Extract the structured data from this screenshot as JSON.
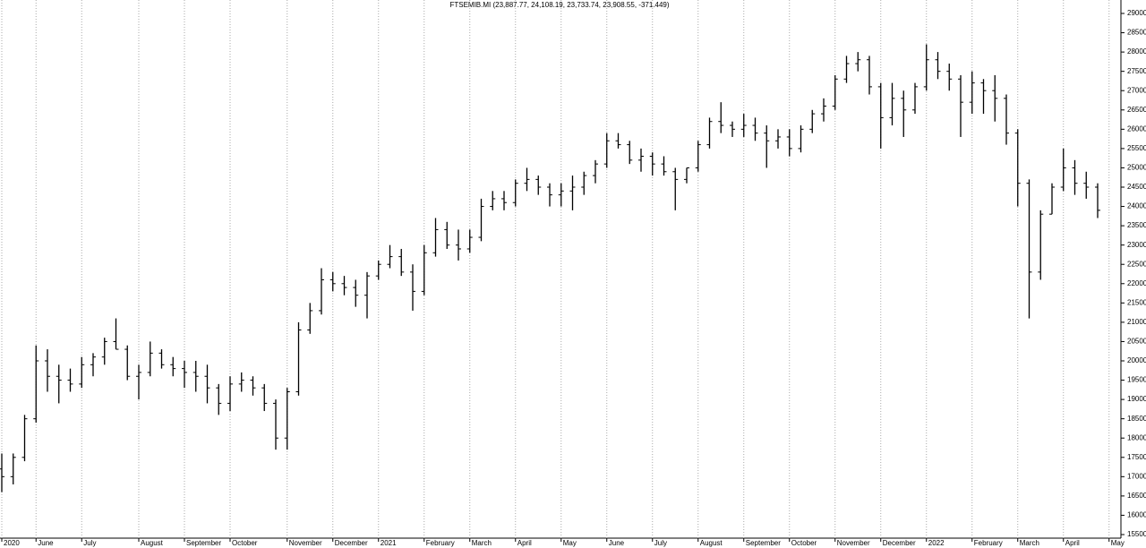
{
  "chart_data": {
    "type": "ohlc",
    "title": "FTSEMIB.MI (23,887.77, 24,108.19, 23,733.74, 23,908.55, -371.449)",
    "color": "#000000",
    "grid": true,
    "categories": [
      "2020",
      null,
      null,
      "June",
      null,
      null,
      null,
      "July",
      null,
      null,
      null,
      null,
      "August",
      null,
      null,
      null,
      "September",
      null,
      null,
      null,
      "October",
      null,
      null,
      null,
      null,
      "November",
      null,
      null,
      null,
      "December",
      null,
      null,
      null,
      "2021",
      null,
      null,
      null,
      "February",
      null,
      null,
      null,
      "March",
      null,
      null,
      null,
      "April",
      null,
      null,
      null,
      "May",
      null,
      null,
      null,
      "June",
      null,
      null,
      null,
      "July",
      null,
      null,
      null,
      "August",
      null,
      null,
      null,
      "September",
      null,
      null,
      null,
      "October",
      null,
      null,
      null,
      "November",
      null,
      null,
      null,
      "December",
      null,
      null,
      null,
      "2022",
      null,
      null,
      null,
      "February",
      null,
      null,
      null,
      "March",
      null,
      null,
      null,
      "April",
      null,
      null,
      null,
      "May"
    ],
    "open": [
      17200,
      17000,
      17500,
      18500,
      20000,
      19600,
      19500,
      19400,
      19900,
      20100,
      20500,
      20300,
      19600,
      19700,
      20200,
      19900,
      19800,
      19700,
      19600,
      19300,
      18900,
      19400,
      19500,
      19300,
      18900,
      18000,
      19200,
      20800,
      21300,
      22100,
      22000,
      21900,
      21700,
      22200,
      22500,
      22700,
      22300,
      21800,
      22800,
      23400,
      23000,
      22900,
      23200,
      24000,
      24200,
      24100,
      24600,
      24700,
      24500,
      24300,
      24400,
      24500,
      24800,
      25100,
      25700,
      25600,
      25200,
      25300,
      25100,
      24900,
      24700,
      25000,
      25600,
      26200,
      26100,
      26000,
      26100,
      25900,
      25700,
      25800,
      25500,
      26000,
      26400,
      26600,
      27300,
      27700,
      27800,
      27100,
      26300,
      26800,
      26500,
      27100,
      27800,
      27500,
      27300,
      26700,
      27200,
      27000,
      26800,
      25900,
      24600,
      22300,
      23800,
      24500,
      25000,
      24600,
      24500,
      null
    ],
    "high": [
      17600,
      17600,
      18600,
      20400,
      20300,
      19900,
      19800,
      20100,
      20200,
      20600,
      21100,
      20400,
      19900,
      20500,
      20300,
      20100,
      20000,
      20000,
      19900,
      19400,
      19600,
      19700,
      19600,
      19400,
      19000,
      19300,
      21000,
      21500,
      22400,
      22300,
      22200,
      22100,
      22300,
      22600,
      23000,
      22900,
      22500,
      23000,
      23700,
      23600,
      23400,
      23400,
      24200,
      24400,
      24400,
      24700,
      25000,
      24800,
      24600,
      24600,
      24800,
      24900,
      25200,
      25900,
      25900,
      25700,
      25500,
      25400,
      25300,
      25000,
      25000,
      25700,
      26300,
      26700,
      26200,
      26400,
      26300,
      26100,
      26000,
      26000,
      26100,
      26500,
      26800,
      27400,
      27900,
      28000,
      27900,
      27200,
      27200,
      27000,
      27200,
      28200,
      28000,
      27700,
      27400,
      27500,
      27300,
      27400,
      26900,
      26000,
      24700,
      23900,
      24600,
      25500,
      25200,
      24900,
      24600,
      null
    ],
    "low": [
      16600,
      16800,
      17400,
      18400,
      19200,
      18900,
      19200,
      19300,
      19600,
      19900,
      20300,
      19500,
      19000,
      19600,
      19800,
      19600,
      19300,
      19200,
      18900,
      18600,
      18700,
      19200,
      19100,
      18700,
      17700,
      17700,
      19100,
      20700,
      21200,
      21800,
      21700,
      21400,
      21100,
      22100,
      22400,
      22200,
      21300,
      21700,
      22700,
      22900,
      22600,
      22800,
      23100,
      23900,
      23900,
      24000,
      24400,
      24300,
      24000,
      24000,
      23900,
      24300,
      24600,
      25000,
      25500,
      25100,
      24900,
      24800,
      24800,
      23900,
      24600,
      24900,
      25500,
      25900,
      25800,
      25800,
      25700,
      25000,
      25500,
      25300,
      25400,
      25900,
      26200,
      26500,
      27200,
      27500,
      26900,
      25500,
      26100,
      25800,
      26400,
      27000,
      27300,
      27000,
      25800,
      26400,
      26400,
      26200,
      25600,
      24000,
      21100,
      22100,
      23800,
      24400,
      24300,
      24200,
      23700,
      null
    ],
    "close": [
      17000,
      17500,
      18500,
      20000,
      19600,
      19500,
      19400,
      19900,
      20100,
      20500,
      20300,
      19600,
      19700,
      20200,
      19900,
      19800,
      19700,
      19600,
      19300,
      18900,
      19400,
      19500,
      19300,
      18900,
      18000,
      19200,
      20800,
      21300,
      22100,
      22000,
      21900,
      21700,
      22200,
      22500,
      22700,
      22300,
      21800,
      22800,
      23400,
      23000,
      22900,
      23200,
      24000,
      24200,
      24100,
      24600,
      24700,
      24500,
      24300,
      24400,
      24500,
      24800,
      25100,
      25700,
      25600,
      25200,
      25300,
      25100,
      24900,
      24700,
      25000,
      25600,
      26200,
      26100,
      26000,
      26100,
      25900,
      25700,
      25800,
      25500,
      26000,
      26400,
      26600,
      27300,
      27700,
      27800,
      27100,
      26300,
      26800,
      26500,
      27100,
      27800,
      27500,
      27300,
      26700,
      27200,
      27000,
      26800,
      25900,
      24600,
      22300,
      23800,
      24500,
      25000,
      24600,
      24500,
      23900,
      null
    ],
    "ylim": [
      15500,
      29000
    ],
    "yticks": [
      15500,
      16000,
      16500,
      17000,
      17500,
      18000,
      18500,
      19000,
      19500,
      20000,
      20500,
      21000,
      21500,
      22000,
      22500,
      23000,
      23500,
      24000,
      24500,
      25000,
      25500,
      26000,
      26500,
      27000,
      27500,
      28000,
      28500,
      29000
    ]
  }
}
